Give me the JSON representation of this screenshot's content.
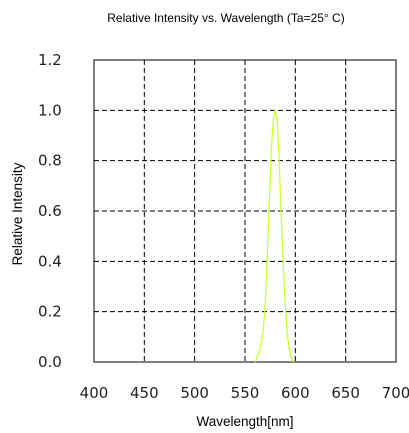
{
  "chart_data": {
    "type": "line",
    "title": "Relative Intensity vs. Wavelength (Ta=25° C)",
    "xlabel": "Wavelength[nm]",
    "ylabel": "Relative Intensity",
    "xlim": [
      400,
      700
    ],
    "ylim": [
      0,
      1.2
    ],
    "x_ticks": [
      "400",
      "450",
      "500",
      "550",
      "600",
      "650",
      "700"
    ],
    "y_ticks": [
      "0.0",
      "0.2",
      "0.4",
      "0.6",
      "0.8",
      "1.0",
      "1.2"
    ],
    "grid": true,
    "grid_style": "dashed",
    "line_color": "#ccff33",
    "series": [
      {
        "x": [
          560,
          565,
          568,
          570,
          572,
          574,
          576,
          578,
          580,
          582,
          584,
          586,
          588,
          590,
          592,
          594,
          596,
          598
        ],
        "y": [
          0.0,
          0.05,
          0.12,
          0.22,
          0.4,
          0.62,
          0.83,
          0.96,
          1.0,
          0.96,
          0.8,
          0.58,
          0.38,
          0.22,
          0.11,
          0.05,
          0.02,
          0.0
        ]
      }
    ]
  }
}
